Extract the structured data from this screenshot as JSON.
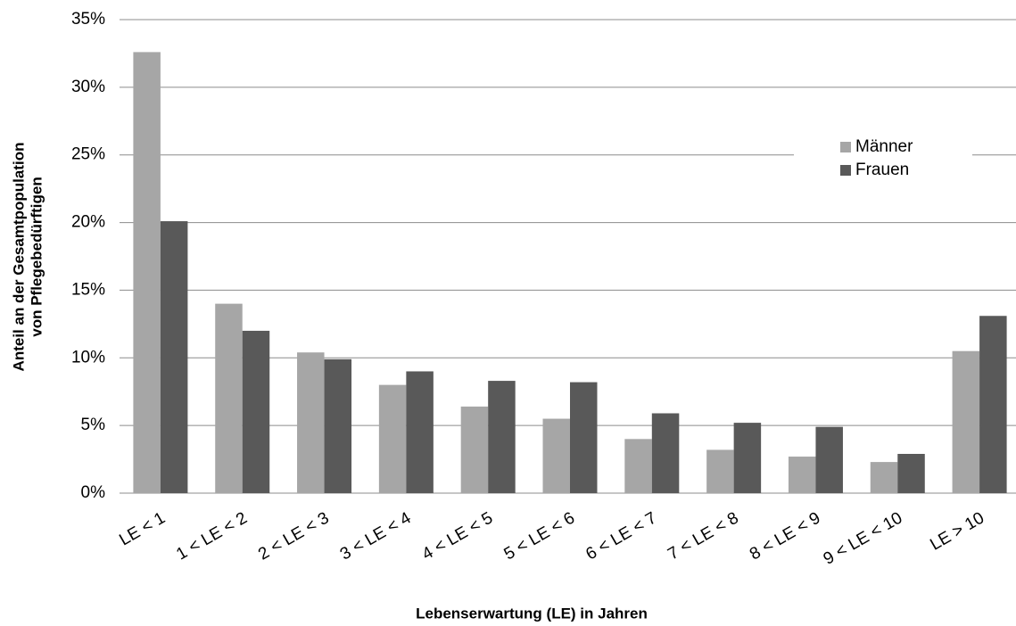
{
  "chart_data": {
    "type": "bar",
    "categories": [
      "LE < 1",
      "1 < LE < 2",
      "2 < LE < 3",
      "3 < LE < 4",
      "4 < LE < 5",
      "5 < LE < 6",
      "6 < LE < 7",
      "7 < LE < 8",
      "8 < LE < 9",
      "9 < LE < 10",
      "LE > 10"
    ],
    "series": [
      {
        "name": "Männer",
        "color": "#a6a6a6",
        "values": [
          32.6,
          14.0,
          10.4,
          8.0,
          6.4,
          5.5,
          4.0,
          3.2,
          2.7,
          2.3,
          10.5
        ]
      },
      {
        "name": "Frauen",
        "color": "#595959",
        "values": [
          20.1,
          12.0,
          9.9,
          9.0,
          8.3,
          8.2,
          5.9,
          5.2,
          4.9,
          2.9,
          13.1
        ]
      }
    ],
    "ylim": [
      0,
      35
    ],
    "yticks": [
      {
        "value": 0,
        "label": "0%"
      },
      {
        "value": 5,
        "label": "5%"
      },
      {
        "value": 10,
        "label": "10%"
      },
      {
        "value": 15,
        "label": "15%"
      },
      {
        "value": 20,
        "label": "20%"
      },
      {
        "value": 25,
        "label": "25%"
      },
      {
        "value": 30,
        "label": "30%"
      },
      {
        "value": 35,
        "label": "35%"
      }
    ],
    "grid": true,
    "x_label": "Lebenserwartung (LE) in Jahren",
    "y_label": [
      "Anteil an der Gesamtpopulation",
      "von Pflegebedürftigen"
    ],
    "legend": "upper right"
  }
}
